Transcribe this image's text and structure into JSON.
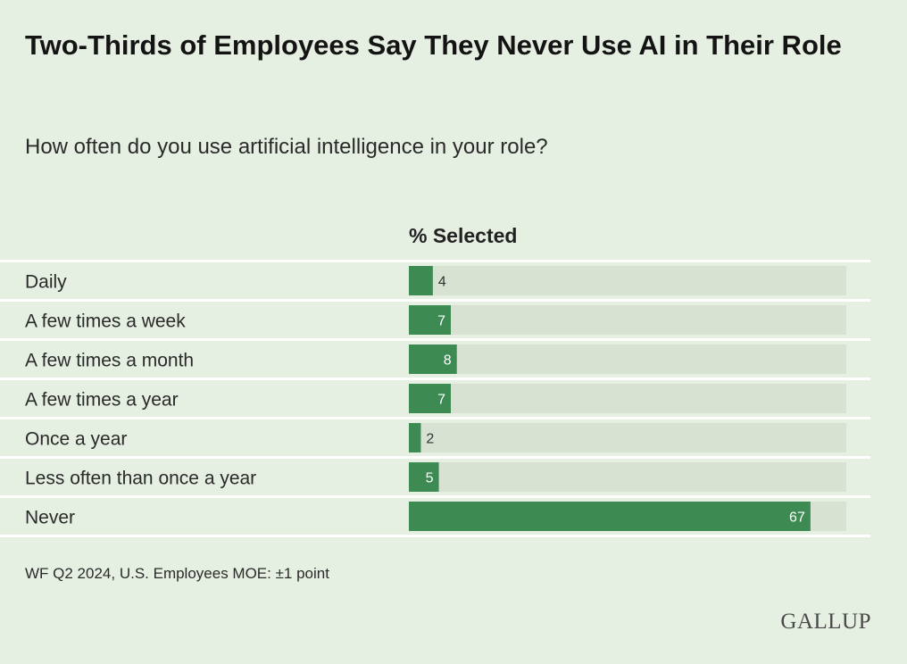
{
  "title": "Two-Thirds of Employees Say They Never Use AI in Their Role",
  "subtitle": "How often do you use artificial intelligence in your role?",
  "logo": "GALLUP",
  "footnote": "WF Q2 2024, U.S. Employees MOE: ±1 point",
  "colors": {
    "background": "#e6f0e2",
    "bar": "#3d8a52",
    "track": "#d7e2d2",
    "divider": "#ffffff",
    "value_inside": "#ffffff",
    "value_outside": "#333333"
  },
  "chart_data": {
    "type": "bar",
    "orientation": "horizontal",
    "column_header": "% Selected",
    "categories": [
      "Daily",
      "A few times a week",
      "A few times a month",
      "A few times a year",
      "Once a year",
      "Less often than once a year",
      "Never"
    ],
    "values": [
      4,
      7,
      8,
      7,
      2,
      5,
      67
    ],
    "xlim": [
      0,
      70
    ],
    "unit": "%"
  }
}
